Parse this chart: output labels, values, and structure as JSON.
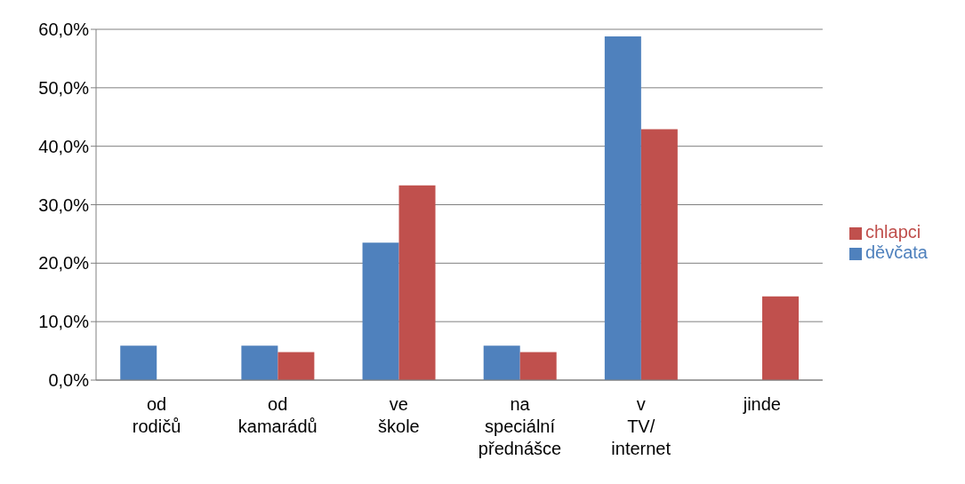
{
  "chart_data": {
    "type": "bar",
    "categories": [
      "od rodičů",
      "od kamarádů",
      "ve škole",
      "na speciální přednášce",
      "v TV/ internet",
      "jinde"
    ],
    "series": [
      {
        "name": "děvčata",
        "color": "#4f81bd",
        "values": [
          5.9,
          5.9,
          23.5,
          5.9,
          58.8,
          0
        ]
      },
      {
        "name": "chlapci",
        "color": "#c0504d",
        "values": [
          0,
          4.8,
          33.3,
          4.8,
          42.9,
          14.3
        ]
      }
    ],
    "ylim": [
      0,
      60
    ],
    "yticks": [
      {
        "value": 0,
        "label": "0,0%"
      },
      {
        "value": 10,
        "label": "10,0%"
      },
      {
        "value": 20,
        "label": "20,0%"
      },
      {
        "value": 30,
        "label": "30,0%"
      },
      {
        "value": 40,
        "label": "40,0%"
      },
      {
        "value": 50,
        "label": "50,0%"
      },
      {
        "value": 60,
        "label": "60,0%"
      }
    ],
    "grid": "y",
    "legend": "right"
  }
}
